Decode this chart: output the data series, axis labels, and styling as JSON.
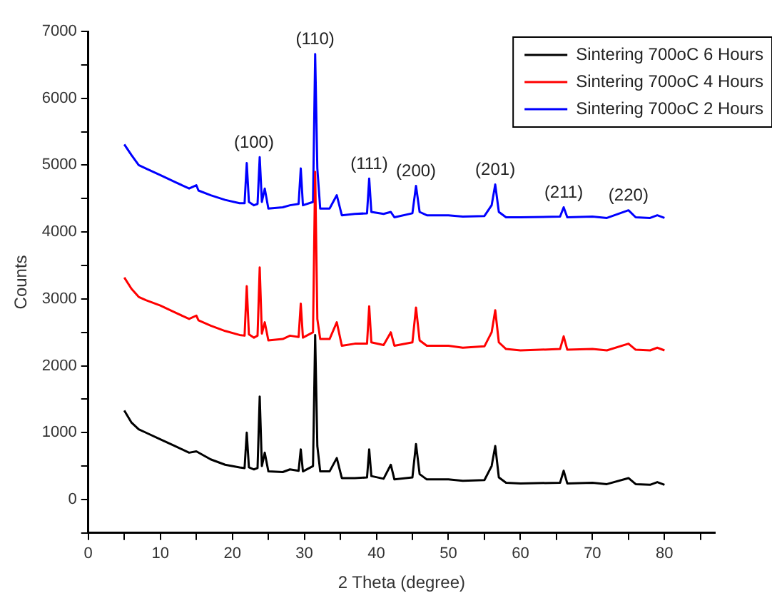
{
  "chart_data": {
    "type": "line",
    "xlabel": "2 Theta (degree)",
    "ylabel": "Counts",
    "xlim": [
      0,
      87
    ],
    "xticks": [
      0,
      {
        "value": 5,
        "label": null
      },
      10,
      {
        "value": 15,
        "label": null
      },
      20,
      {
        "value": 25,
        "label": null
      },
      30,
      {
        "value": 35,
        "label": null
      },
      40,
      {
        "value": 45,
        "label": null
      },
      50,
      {
        "value": 55,
        "label": null
      },
      60,
      {
        "value": 65,
        "label": null
      },
      70,
      {
        "value": 75,
        "label": null
      },
      80,
      {
        "value": 85,
        "label": null
      }
    ],
    "ylim": [
      -500,
      7000
    ],
    "yticks": [
      {
        "value": -500,
        "label": null
      },
      0,
      {
        "value": 500,
        "label": null
      },
      1000,
      {
        "value": 1500,
        "label": null
      },
      2000,
      {
        "value": 2500,
        "label": null
      },
      3000,
      {
        "value": 3500,
        "label": null
      },
      4000,
      {
        "value": 4500,
        "label": null
      },
      5000,
      {
        "value": 5500,
        "label": null
      },
      6000,
      {
        "value": 6500,
        "label": null
      },
      7000
    ],
    "grid": false,
    "legend": "top right",
    "marker": "none",
    "line_style": "solid",
    "annotations": [
      {
        "text": "(100)",
        "x": 23,
        "y": 5120
      },
      {
        "text": "(110)",
        "x": 31.5,
        "y": 6660
      },
      {
        "text": "(111)",
        "x": 39,
        "y": 4800
      },
      {
        "text": "(200)",
        "x": 45.5,
        "y": 4690
      },
      {
        "text": "(201)",
        "x": 56.5,
        "y": 4710
      },
      {
        "text": "(211)",
        "x": 66,
        "y": 4370
      },
      {
        "text": "(220)",
        "x": 75,
        "y": 4325
      }
    ],
    "series": [
      {
        "name": "Sintering 700oC 6 Hours",
        "color": "#000000",
        "x": [
          5,
          6,
          7,
          8,
          10,
          12,
          14,
          15,
          17,
          19,
          21,
          21.7,
          22,
          22.3,
          23,
          23.5,
          23.8,
          24.1,
          24.5,
          25,
          27,
          28,
          29.2,
          29.5,
          29.8,
          31.2,
          31.5,
          31.8,
          32.2,
          33.5,
          34.5,
          35.2,
          37,
          38.7,
          39,
          39.3,
          41,
          42,
          42.5,
          45,
          45.5,
          46,
          47,
          50,
          52,
          55,
          56,
          56.5,
          57,
          58,
          60,
          65.5,
          66,
          66.5,
          70,
          72,
          75,
          76,
          78,
          79,
          80
        ],
        "values": [
          1330,
          1150,
          1050,
          1000,
          900,
          800,
          700,
          720,
          600,
          520,
          480,
          470,
          1000,
          480,
          450,
          470,
          1540,
          500,
          700,
          420,
          410,
          450,
          430,
          750,
          420,
          500,
          2460,
          800,
          420,
          420,
          620,
          320,
          320,
          330,
          750,
          350,
          310,
          520,
          300,
          330,
          830,
          380,
          300,
          300,
          280,
          290,
          500,
          800,
          330,
          250,
          240,
          250,
          430,
          240,
          250,
          230,
          320,
          230,
          220,
          260,
          220
        ]
      },
      {
        "name": "Sintering 700oC 4 Hours",
        "color": "#ff0000",
        "x": [
          5,
          6,
          7,
          8,
          10,
          12,
          14,
          15,
          15.3,
          17,
          19,
          21,
          21.7,
          22,
          22.3,
          23,
          23.5,
          23.8,
          24.1,
          24.5,
          25,
          27,
          28,
          29.2,
          29.5,
          29.8,
          31.2,
          31.5,
          31.8,
          32.2,
          33.5,
          34.5,
          35.2,
          37,
          38.7,
          39,
          39.3,
          41,
          42,
          42.5,
          45,
          45.5,
          46,
          47,
          50,
          52,
          55,
          56,
          56.5,
          57,
          58,
          60,
          65.5,
          66,
          66.5,
          70,
          72,
          75,
          76,
          78,
          79,
          80
        ],
        "values": [
          3320,
          3150,
          3030,
          2980,
          2900,
          2800,
          2700,
          2750,
          2680,
          2600,
          2520,
          2460,
          2450,
          3190,
          2470,
          2420,
          2450,
          3470,
          2480,
          2650,
          2380,
          2400,
          2450,
          2430,
          2930,
          2420,
          2500,
          4900,
          2700,
          2400,
          2400,
          2650,
          2300,
          2330,
          2330,
          2890,
          2350,
          2310,
          2500,
          2300,
          2350,
          2870,
          2380,
          2300,
          2300,
          2270,
          2290,
          2500,
          2830,
          2350,
          2250,
          2230,
          2250,
          2440,
          2240,
          2250,
          2230,
          2330,
          2240,
          2230,
          2270,
          2230
        ]
      },
      {
        "name": "Sintering 700oC 2 Hours",
        "color": "#0000ff",
        "x": [
          5,
          6,
          7,
          8,
          10,
          12,
          14,
          15,
          15.3,
          17,
          19,
          21,
          21.7,
          22,
          22.3,
          23,
          23.5,
          23.8,
          24.1,
          24.5,
          25,
          27,
          28,
          29.2,
          29.5,
          29.8,
          31.2,
          31.5,
          31.8,
          32.2,
          33.5,
          34.5,
          35.2,
          37,
          38.7,
          39,
          39.3,
          41,
          42,
          42.5,
          45,
          45.5,
          46,
          47,
          50,
          52,
          55,
          56,
          56.5,
          57,
          58,
          60,
          65.5,
          66,
          66.5,
          70,
          72,
          75,
          76,
          78,
          79,
          80
        ],
        "values": [
          5310,
          5150,
          5000,
          4950,
          4850,
          4750,
          4650,
          4700,
          4620,
          4550,
          4480,
          4430,
          4430,
          5030,
          4450,
          4400,
          4420,
          5120,
          4450,
          4650,
          4350,
          4370,
          4400,
          4420,
          4950,
          4400,
          4450,
          6660,
          4950,
          4350,
          4350,
          4550,
          4250,
          4270,
          4280,
          4800,
          4300,
          4270,
          4300,
          4220,
          4280,
          4690,
          4300,
          4250,
          4250,
          4230,
          4240,
          4400,
          4710,
          4300,
          4220,
          4220,
          4230,
          4370,
          4220,
          4230,
          4210,
          4325,
          4220,
          4210,
          4250,
          4210
        ]
      }
    ]
  }
}
